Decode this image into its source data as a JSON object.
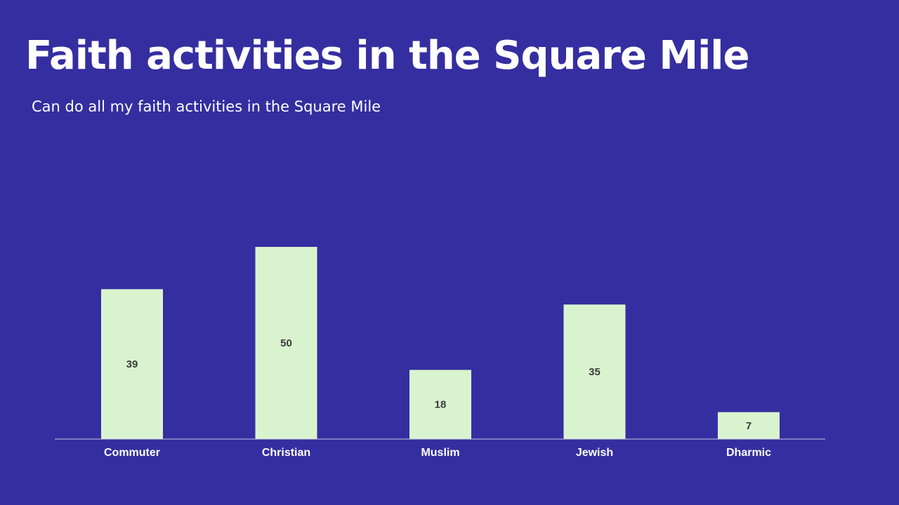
{
  "slide": {
    "title": "Faith activities in the Square Mile",
    "subtitle": "Can do all my faith activities in the Square Mile"
  },
  "colors": {
    "background": "#352ea0",
    "bar": "#daf3cf",
    "axis": "#c8c8e8",
    "label": "#3a3a3a",
    "text": "#ffffff"
  },
  "chart_data": {
    "type": "bar",
    "title": "Faith activities in the Square Mile",
    "subtitle": "Can do all my faith activities in the Square Mile",
    "categories": [
      "Commuter",
      "Christian",
      "Muslim",
      "Jewish",
      "Dharmic"
    ],
    "values": [
      39,
      50,
      18,
      35,
      7
    ],
    "xlabel": "",
    "ylabel": "",
    "ylim": [
      0,
      60
    ],
    "grid": false,
    "legend": "none",
    "data_labels": "center"
  }
}
